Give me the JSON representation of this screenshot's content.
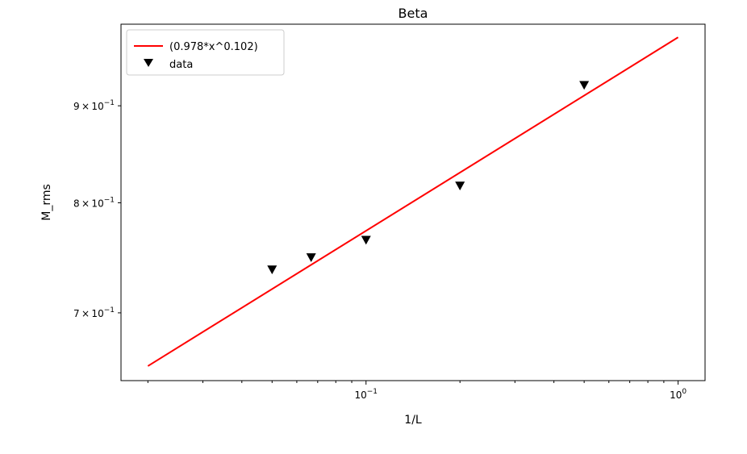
{
  "chart_data": {
    "type": "scatter",
    "title": "Beta",
    "xlabel": "1/L",
    "ylabel": "M_rms",
    "xscale": "log",
    "yscale": "log",
    "xlim": [
      0.0164,
      1.22
    ],
    "ylim": [
      0.6447,
      0.9937
    ],
    "grid": false,
    "legend_position": "top-left",
    "x_ticks": [
      {
        "value": 0.1,
        "mantissa": "10",
        "exp": "−1"
      },
      {
        "value": 1,
        "mantissa": "10",
        "exp": "0"
      }
    ],
    "y_ticks": [
      {
        "value": 0.7,
        "mantissa": "7 × 10",
        "exp": "−1"
      },
      {
        "value": 0.8,
        "mantissa": "8 × 10",
        "exp": "−1"
      },
      {
        "value": 0.9,
        "mantissa": "9 × 10",
        "exp": "−1"
      }
    ],
    "series": [
      {
        "name": "(0.978*x^0.102)",
        "kind": "line",
        "color": "#ff0000",
        "coefficient": 0.978,
        "exponent": 0.102,
        "x_range": [
          0.02,
          1.0
        ]
      },
      {
        "name": "data",
        "kind": "scatter",
        "marker": "triangle-down",
        "color": "#000000",
        "points": [
          {
            "x": 0.05,
            "y": 0.737
          },
          {
            "x": 0.0667,
            "y": 0.748
          },
          {
            "x": 0.1,
            "y": 0.764
          },
          {
            "x": 0.2,
            "y": 0.816
          },
          {
            "x": 0.5,
            "y": 0.922
          }
        ]
      }
    ]
  }
}
